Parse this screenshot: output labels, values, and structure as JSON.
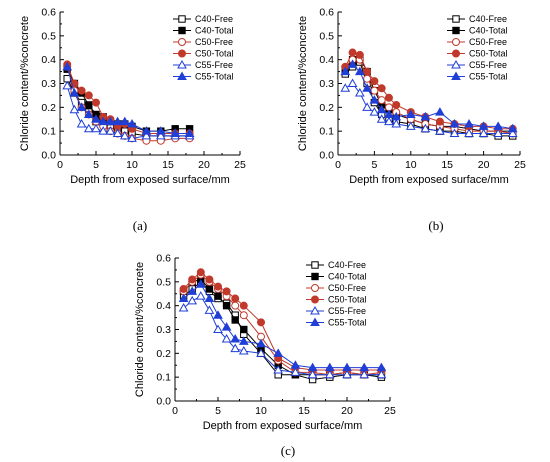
{
  "figure": {
    "captions": [
      "(a)",
      "(b)",
      "(c)"
    ]
  },
  "chart_data": [
    {
      "type": "line",
      "panel": "(a)",
      "xlabel": "Depth from exposed surface/mm",
      "ylabel": "Chloride content/%concrete",
      "xlim": [
        0,
        25
      ],
      "ylim": [
        0,
        0.6
      ],
      "xticks": [
        0,
        5,
        10,
        15,
        20,
        25
      ],
      "yticks": [
        0.0,
        0.1,
        0.2,
        0.3,
        0.4,
        0.5,
        0.6
      ],
      "legend_position": "top-right",
      "series": [
        {
          "name": "C40-Free",
          "color": "#000000",
          "marker": "square-open",
          "x": [
            1,
            2,
            3,
            4,
            5,
            6,
            7,
            8,
            9,
            10,
            12,
            14,
            16,
            18
          ],
          "y": [
            0.32,
            0.26,
            0.22,
            0.18,
            0.14,
            0.13,
            0.12,
            0.11,
            0.1,
            0.09,
            0.08,
            0.08,
            0.08,
            0.08
          ]
        },
        {
          "name": "C40-Total",
          "color": "#000000",
          "marker": "square-filled",
          "x": [
            1,
            2,
            3,
            4,
            5,
            6,
            7,
            8,
            9,
            10,
            12,
            14,
            16,
            18
          ],
          "y": [
            0.36,
            0.3,
            0.26,
            0.21,
            0.17,
            0.16,
            0.14,
            0.13,
            0.13,
            0.12,
            0.1,
            0.1,
            0.11,
            0.11
          ]
        },
        {
          "name": "C50-Free",
          "color": "#c0392b",
          "marker": "circle-open",
          "x": [
            1,
            2,
            3,
            4,
            5,
            6,
            7,
            8,
            9,
            10,
            12,
            14,
            16,
            18
          ],
          "y": [
            0.37,
            0.27,
            0.2,
            0.17,
            0.14,
            0.12,
            0.1,
            0.09,
            0.08,
            0.07,
            0.06,
            0.06,
            0.07,
            0.07
          ]
        },
        {
          "name": "C50-Total",
          "color": "#c0392b",
          "marker": "circle-filled",
          "x": [
            1,
            2,
            3,
            4,
            5,
            6,
            7,
            8,
            9,
            10,
            12,
            14,
            16,
            18
          ],
          "y": [
            0.38,
            0.3,
            0.27,
            0.25,
            0.22,
            0.16,
            0.15,
            0.12,
            0.13,
            0.11,
            0.09,
            0.09,
            0.09,
            0.09
          ]
        },
        {
          "name": "C55-Free",
          "color": "#1f3fd6",
          "marker": "triangle-open",
          "x": [
            1,
            2,
            3,
            4,
            5,
            6,
            7,
            8,
            9,
            10,
            12,
            14,
            16,
            18
          ],
          "y": [
            0.29,
            0.19,
            0.13,
            0.11,
            0.11,
            0.1,
            0.1,
            0.09,
            0.08,
            0.07,
            0.08,
            0.08,
            0.08,
            0.08
          ]
        },
        {
          "name": "C55-Total",
          "color": "#1f3fd6",
          "marker": "triangle-filled",
          "x": [
            1,
            2,
            3,
            4,
            5,
            6,
            7,
            8,
            9,
            10,
            12,
            14,
            16,
            18
          ],
          "y": [
            0.37,
            0.26,
            0.2,
            0.17,
            0.15,
            0.14,
            0.14,
            0.14,
            0.14,
            0.13,
            0.1,
            0.1,
            0.09,
            0.09
          ]
        }
      ]
    },
    {
      "type": "line",
      "panel": "(b)",
      "xlabel": "Depth from exposed surface/mm",
      "ylabel": "Chloride content/%concrete",
      "xlim": [
        0,
        25
      ],
      "ylim": [
        0,
        0.6
      ],
      "xticks": [
        0,
        5,
        10,
        15,
        20,
        25
      ],
      "yticks": [
        0.0,
        0.1,
        0.2,
        0.3,
        0.4,
        0.5,
        0.6
      ],
      "legend_position": "top-right",
      "series": [
        {
          "name": "C40-Free",
          "color": "#000000",
          "marker": "square-open",
          "x": [
            1,
            2,
            3,
            4,
            5,
            6,
            7,
            8,
            10,
            12,
            14,
            16,
            18,
            20,
            22,
            24
          ],
          "y": [
            0.34,
            0.37,
            0.39,
            0.3,
            0.22,
            0.17,
            0.15,
            0.14,
            0.13,
            0.11,
            0.1,
            0.1,
            0.09,
            0.09,
            0.08,
            0.08
          ]
        },
        {
          "name": "C40-Total",
          "color": "#000000",
          "marker": "square-filled",
          "x": [
            1,
            2,
            3,
            4,
            5,
            6,
            7,
            8,
            10,
            12,
            14,
            16,
            18,
            20,
            22,
            24
          ],
          "y": [
            0.36,
            0.4,
            0.41,
            0.35,
            0.27,
            0.21,
            0.19,
            0.17,
            0.15,
            0.13,
            0.12,
            0.12,
            0.11,
            0.1,
            0.1,
            0.1
          ]
        },
        {
          "name": "C50-Free",
          "color": "#c0392b",
          "marker": "circle-open",
          "x": [
            1,
            2,
            3,
            4,
            5,
            6,
            7,
            8,
            10,
            12,
            14,
            16,
            18,
            20,
            22,
            24
          ],
          "y": [
            0.37,
            0.4,
            0.4,
            0.32,
            0.27,
            0.23,
            0.2,
            0.18,
            0.15,
            0.13,
            0.12,
            0.11,
            0.1,
            0.1,
            0.1,
            0.09
          ]
        },
        {
          "name": "C50-Total",
          "color": "#c0392b",
          "marker": "circle-filled",
          "x": [
            1,
            2,
            3,
            4,
            5,
            6,
            7,
            8,
            10,
            12,
            14,
            16,
            18,
            20,
            22,
            24
          ],
          "y": [
            0.37,
            0.43,
            0.42,
            0.35,
            0.31,
            0.28,
            0.24,
            0.21,
            0.18,
            0.16,
            0.14,
            0.13,
            0.12,
            0.12,
            0.11,
            0.11
          ]
        },
        {
          "name": "C55-Free",
          "color": "#1f3fd6",
          "marker": "triangle-open",
          "x": [
            1,
            2,
            3,
            4,
            5,
            6,
            7,
            8,
            10,
            12,
            14,
            16,
            18,
            20,
            22,
            24
          ],
          "y": [
            0.28,
            0.3,
            0.26,
            0.2,
            0.18,
            0.15,
            0.14,
            0.13,
            0.12,
            0.11,
            0.1,
            0.09,
            0.09,
            0.09,
            0.09,
            0.09
          ]
        },
        {
          "name": "C55-Total",
          "color": "#1f3fd6",
          "marker": "triangle-filled",
          "x": [
            1,
            2,
            3,
            4,
            5,
            6,
            7,
            8,
            10,
            12,
            14,
            16,
            18,
            20,
            22,
            24
          ],
          "y": [
            0.35,
            0.38,
            0.35,
            0.28,
            0.23,
            0.19,
            0.17,
            0.16,
            0.17,
            0.16,
            0.18,
            0.13,
            0.13,
            0.12,
            0.12,
            0.11
          ]
        }
      ]
    },
    {
      "type": "line",
      "panel": "(c)",
      "xlabel": "Depth from exposed surface/mm",
      "ylabel": "Chloride content/%concrete",
      "xlim": [
        0,
        25
      ],
      "ylim": [
        0,
        0.6
      ],
      "xticks": [
        0,
        5,
        10,
        15,
        20,
        25
      ],
      "yticks": [
        0.0,
        0.1,
        0.2,
        0.3,
        0.4,
        0.5,
        0.6
      ],
      "legend_position": "top-right",
      "series": [
        {
          "name": "C40-Free",
          "color": "#000000",
          "marker": "square-open",
          "x": [
            1,
            2,
            3,
            4,
            5,
            6,
            7,
            8,
            10,
            12,
            14,
            16,
            18,
            20,
            22,
            24
          ],
          "y": [
            0.44,
            0.47,
            0.5,
            0.46,
            0.43,
            0.41,
            0.36,
            0.28,
            0.2,
            0.11,
            0.11,
            0.09,
            0.1,
            0.11,
            0.11,
            0.1
          ]
        },
        {
          "name": "C40-Total",
          "color": "#000000",
          "marker": "square-filled",
          "x": [
            1,
            2,
            3,
            4,
            5,
            6,
            7,
            8,
            10,
            12,
            14,
            16,
            18,
            20,
            22,
            24
          ],
          "y": [
            0.46,
            0.5,
            0.51,
            0.47,
            0.44,
            0.4,
            0.34,
            0.3,
            0.22,
            0.15,
            0.11,
            0.11,
            0.11,
            0.12,
            0.11,
            0.11
          ]
        },
        {
          "name": "C50-Free",
          "color": "#c0392b",
          "marker": "circle-open",
          "x": [
            1,
            2,
            3,
            4,
            5,
            6,
            7,
            8,
            10,
            12,
            14,
            16,
            18,
            20,
            22,
            24
          ],
          "y": [
            0.46,
            0.5,
            0.53,
            0.5,
            0.47,
            0.44,
            0.4,
            0.36,
            0.27,
            0.17,
            0.12,
            0.12,
            0.11,
            0.12,
            0.11,
            0.12
          ]
        },
        {
          "name": "C50-Total",
          "color": "#c0392b",
          "marker": "circle-filled",
          "x": [
            1,
            2,
            3,
            4,
            5,
            6,
            7,
            8,
            10,
            12,
            14,
            16,
            18,
            20,
            22,
            24
          ],
          "y": [
            0.47,
            0.51,
            0.54,
            0.51,
            0.48,
            0.46,
            0.43,
            0.4,
            0.33,
            0.18,
            0.14,
            0.13,
            0.13,
            0.13,
            0.13,
            0.13
          ]
        },
        {
          "name": "C55-Free",
          "color": "#1f3fd6",
          "marker": "triangle-open",
          "x": [
            1,
            2,
            3,
            4,
            5,
            6,
            7,
            8,
            10,
            12,
            14,
            16,
            18,
            20,
            22,
            24
          ],
          "y": [
            0.39,
            0.42,
            0.44,
            0.38,
            0.3,
            0.26,
            0.22,
            0.21,
            0.2,
            0.13,
            0.12,
            0.11,
            0.11,
            0.11,
            0.11,
            0.11
          ]
        },
        {
          "name": "C55-Total",
          "color": "#1f3fd6",
          "marker": "triangle-filled",
          "x": [
            1,
            2,
            3,
            4,
            5,
            6,
            7,
            8,
            10,
            12,
            14,
            16,
            18,
            20,
            22,
            24
          ],
          "y": [
            0.43,
            0.46,
            0.49,
            0.43,
            0.36,
            0.31,
            0.26,
            0.25,
            0.24,
            0.2,
            0.15,
            0.14,
            0.14,
            0.14,
            0.14,
            0.14
          ]
        }
      ]
    }
  ]
}
